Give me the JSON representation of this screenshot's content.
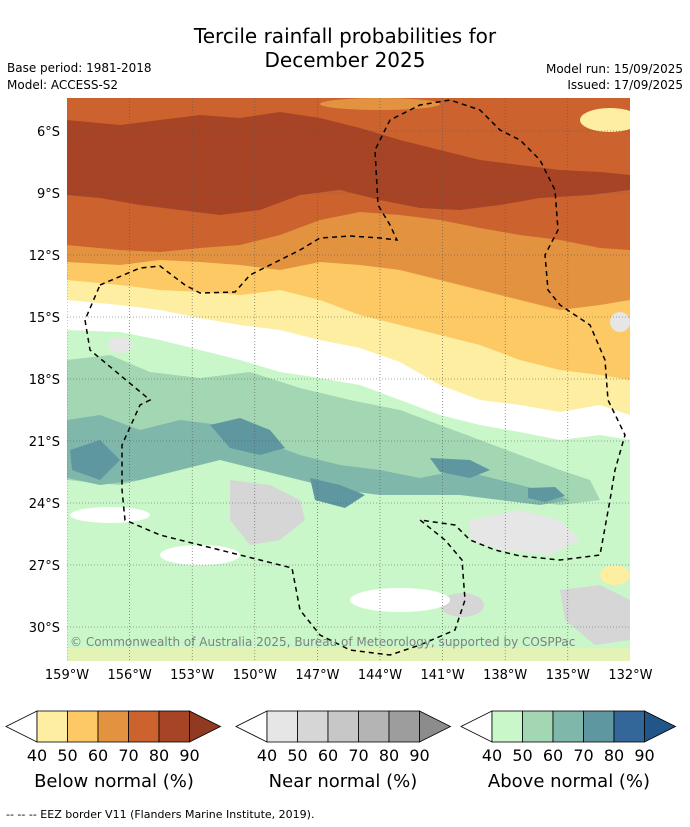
{
  "title": {
    "line1": "Tercile rainfall probabilities for",
    "line2": "December 2025"
  },
  "meta": {
    "base_period": "Base period: 1981-2018",
    "model": "Model: ACCESS-S2",
    "model_run": "Model run: 15/09/2025",
    "issued": "Issued: 17/09/2025"
  },
  "map": {
    "lat_labels": [
      "6°S",
      "9°S",
      "12°S",
      "15°S",
      "18°S",
      "21°S",
      "24°S",
      "27°S",
      "30°S"
    ],
    "lon_labels": [
      "159°W",
      "156°W",
      "153°W",
      "150°W",
      "147°W",
      "144°W",
      "141°W",
      "138°W",
      "135°W",
      "132°W"
    ],
    "copyright": "© Commonwealth of Australia 2025, Bureau of Meteorology, supported by COSPPac"
  },
  "legends": [
    {
      "id": "below",
      "label": "Below normal (%)",
      "colors": [
        "#fdeea1",
        "#fcc964",
        "#e39240",
        "#cc622e",
        "#a64425",
        "#903a22"
      ],
      "ticks": [
        "40",
        "50",
        "60",
        "70",
        "80",
        "90"
      ]
    },
    {
      "id": "near",
      "label": "Near normal (%)",
      "colors": [
        "#e6e6e6",
        "#d6d6d6",
        "#c7c7c7",
        "#b4b4b4",
        "#9d9d9d",
        "#8c8c8c"
      ],
      "ticks": [
        "40",
        "50",
        "60",
        "70",
        "80",
        "90"
      ]
    },
    {
      "id": "above",
      "label": "Above normal (%)",
      "colors": [
        "#c9f7c9",
        "#a3d6b2",
        "#80b7ab",
        "#5f97a1",
        "#336699",
        "#225588"
      ],
      "ticks": [
        "40",
        "50",
        "60",
        "70",
        "80",
        "90"
      ]
    }
  ],
  "footer": "--  --  -- EEZ border V11 (Flanders Marine Institute, 2019)."
}
